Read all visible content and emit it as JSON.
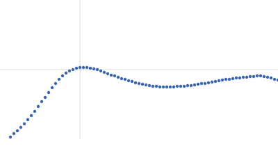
{
  "chart_data": {
    "type": "scatter",
    "x": [
      15,
      20,
      25,
      30,
      35,
      40,
      45,
      50,
      55,
      60,
      65,
      70,
      75,
      80,
      85,
      90,
      95,
      100,
      105,
      110,
      115,
      120,
      125,
      130,
      135,
      140,
      145,
      150,
      155,
      160,
      165,
      170,
      175,
      180,
      185,
      190,
      195,
      200,
      205,
      210,
      215,
      220,
      225,
      230,
      235,
      240,
      245,
      250,
      255,
      260,
      265,
      270,
      275,
      280,
      285,
      290,
      295,
      300,
      305,
      310,
      315,
      320,
      325,
      330,
      335,
      340,
      345,
      350,
      355,
      360,
      365,
      370,
      375,
      380,
      385,
      390,
      395,
      400
    ],
    "series": [
      {
        "color": "#3a66b0",
        "values": [
          3,
          8,
          12,
          17,
          22,
          28,
          34,
          40,
          47,
          54,
          60,
          67,
          74,
          80,
          86,
          91,
          95,
          98,
          100,
          102,
          103,
          103,
          103,
          102,
          101,
          100,
          98,
          96,
          94,
          92,
          91,
          89,
          87,
          86,
          84,
          83,
          81,
          80,
          79,
          78,
          77,
          76,
          76,
          75,
          75,
          75,
          75,
          75,
          76,
          76,
          76,
          77,
          77,
          78,
          79,
          80,
          80,
          81,
          82,
          83,
          84,
          85,
          86,
          86,
          87,
          88,
          88,
          89,
          89,
          90,
          90,
          91,
          91,
          90,
          89,
          88,
          86,
          85
        ]
      }
    ],
    "xlim": [
      0,
      400
    ],
    "ylim": [
      0,
      200
    ],
    "xticks": [
      115
    ],
    "yticks": [
      100
    ],
    "grid": true
  }
}
